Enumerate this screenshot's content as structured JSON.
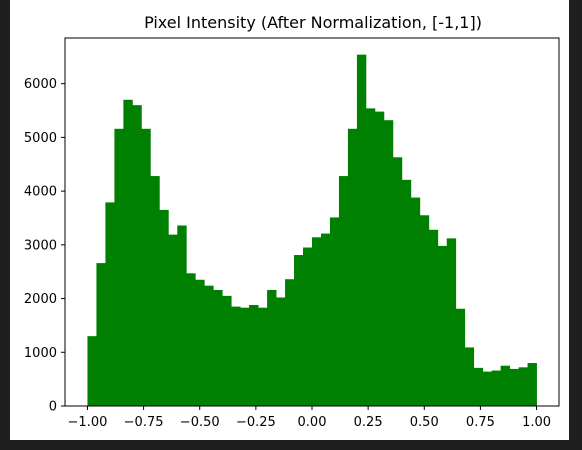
{
  "chart_data": {
    "type": "bar",
    "title": "Pixel Intensity (After Normalization, [-1,1])",
    "xlabel": "",
    "ylabel": "",
    "xlim": [
      -1.1,
      1.1
    ],
    "ylim": [
      0,
      6850
    ],
    "grid": false,
    "legend": "none",
    "bar_color": "#008000",
    "bin_start": -1.0,
    "bin_width": 0.04,
    "values": [
      1300,
      2660,
      3790,
      5160,
      5700,
      5600,
      5160,
      4280,
      3650,
      3190,
      3360,
      2470,
      2350,
      2240,
      2160,
      2050,
      1850,
      1830,
      1880,
      1830,
      2160,
      2020,
      2360,
      2810,
      2950,
      3140,
      3210,
      3510,
      4280,
      5160,
      6540,
      5540,
      5480,
      5320,
      4630,
      4210,
      3880,
      3550,
      3280,
      2980,
      3120,
      1810,
      1090,
      710,
      640,
      660,
      750,
      690,
      720,
      800
    ],
    "x_ticks": [
      -1.0,
      -0.75,
      -0.5,
      -0.25,
      0.0,
      0.25,
      0.5,
      0.75,
      1.0
    ],
    "x_tick_labels": [
      "−1.00",
      "−0.75",
      "−0.50",
      "−0.25",
      "0.00",
      "0.25",
      "0.50",
      "0.75",
      "1.00"
    ],
    "y_ticks": [
      0,
      1000,
      2000,
      3000,
      4000,
      5000,
      6000
    ],
    "y_tick_labels": [
      "0",
      "1000",
      "2000",
      "3000",
      "4000",
      "5000",
      "6000"
    ]
  }
}
